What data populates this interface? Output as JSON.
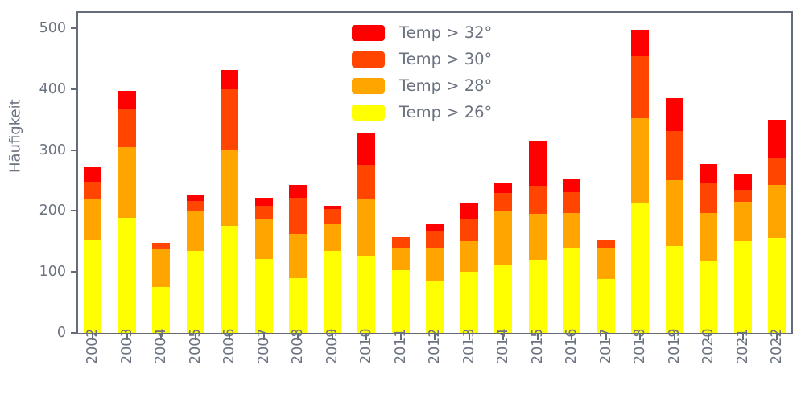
{
  "figure": {
    "ylabel": "Häufigkeit",
    "background": "#ffffff",
    "axis_color": "#646c79",
    "text_color": "#6b7280"
  },
  "legend": {
    "items": [
      {
        "label": "Temp > 32°",
        "color": "#ff0000"
      },
      {
        "label": "Temp > 30°",
        "color": "#ff4500"
      },
      {
        "label": "Temp > 28°",
        "color": "#ffa500"
      },
      {
        "label": "Temp > 26°",
        "color": "#ffff00"
      }
    ]
  },
  "chart_data": {
    "type": "bar",
    "stacked": true,
    "title": "",
    "xlabel": "",
    "ylabel": "Häufigkeit",
    "ylim": [
      0,
      525
    ],
    "yticks": [
      0,
      100,
      200,
      300,
      400,
      500
    ],
    "grid": false,
    "legend_position": "upper center",
    "x_tick_rotation": 90,
    "categories": [
      "2002",
      "2003",
      "2004",
      "2005",
      "2006",
      "2007",
      "2008",
      "2009",
      "2010",
      "2011",
      "2012",
      "2013",
      "2014",
      "2015",
      "2016",
      "2017",
      "2018",
      "2019",
      "2020",
      "2021",
      "2022"
    ],
    "series": [
      {
        "name": "Temp > 26°",
        "color": "#ffff00",
        "values": [
          152,
          188,
          75,
          134,
          175,
          121,
          90,
          134,
          125,
          103,
          84,
          100,
          111,
          119,
          140,
          88,
          212,
          143,
          117,
          150,
          156
        ]
      },
      {
        "name": "Temp > 28°",
        "color": "#ffa500",
        "values": [
          68,
          117,
          62,
          66,
          124,
          66,
          72,
          46,
          95,
          35,
          54,
          50,
          90,
          76,
          56,
          50,
          140,
          108,
          79,
          65,
          87
        ]
      },
      {
        "name": "Temp > 30°",
        "color": "#ff4500",
        "values": [
          28,
          63,
          11,
          17,
          101,
          21,
          59,
          23,
          56,
          19,
          30,
          37,
          28,
          47,
          35,
          14,
          102,
          80,
          51,
          20,
          44
        ]
      },
      {
        "name": "Temp > 32°",
        "color": "#ff0000",
        "values": [
          24,
          29,
          0,
          9,
          32,
          14,
          22,
          5,
          51,
          0,
          12,
          25,
          18,
          73,
          21,
          0,
          44,
          54,
          30,
          26,
          63
        ]
      }
    ],
    "totals": [
      272,
      397,
      148,
      226,
      432,
      222,
      243,
      208,
      327,
      157,
      180,
      212,
      247,
      315,
      252,
      152,
      498,
      385,
      277,
      261,
      350
    ]
  }
}
